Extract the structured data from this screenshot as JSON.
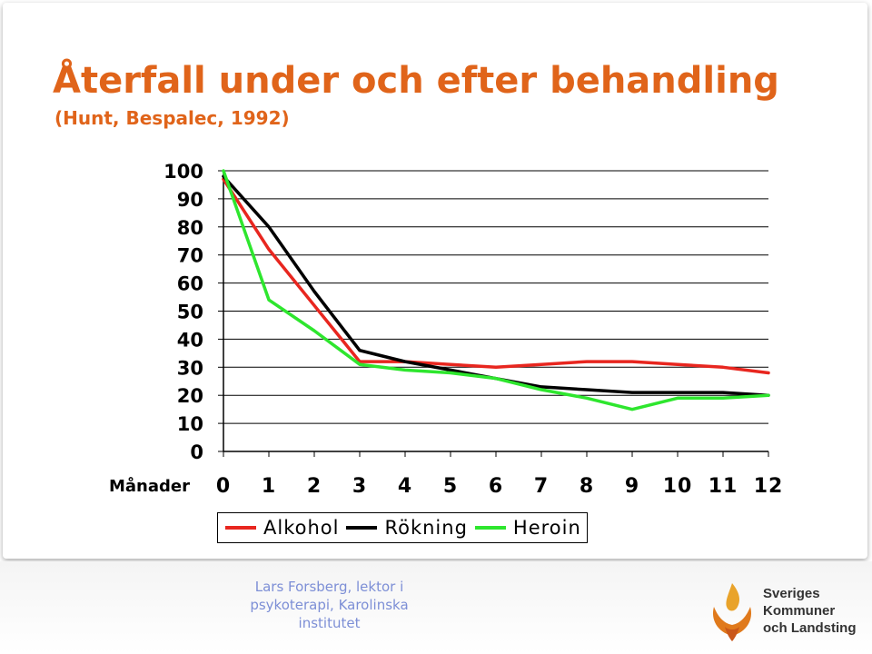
{
  "slide": {
    "title": "Återfall under och efter behandling",
    "subtitle": "(Hunt, Bespalec, 1992)",
    "credit": "Lars Forsberg, lektor i psykoterapi, Karolinska institutet",
    "logo": {
      "icon": "sklvpa-flame-logo-icon",
      "line1": "Sveriges",
      "line2": "Kommuner",
      "line3": "och Landsting"
    }
  },
  "chart_data": {
    "type": "line",
    "xlabel": "Månader",
    "ylabel": "",
    "x": [
      0,
      1,
      2,
      3,
      4,
      5,
      6,
      7,
      8,
      9,
      10,
      11,
      12
    ],
    "ylim": [
      0,
      100
    ],
    "yticks": [
      0,
      10,
      20,
      30,
      40,
      50,
      60,
      70,
      80,
      90,
      100
    ],
    "grid": true,
    "legend_position": "bottom",
    "series": [
      {
        "name": "Alkohol",
        "color": "#e8261f",
        "values": [
          97,
          72,
          52,
          32,
          32,
          31,
          30,
          31,
          32,
          32,
          31,
          30,
          28
        ]
      },
      {
        "name": "Rökning",
        "color": "#000000",
        "values": [
          98,
          80,
          57,
          36,
          32,
          29,
          26,
          23,
          22,
          21,
          21,
          21,
          20
        ]
      },
      {
        "name": "Heroin",
        "color": "#2ee62e",
        "values": [
          100,
          54,
          43,
          31,
          29,
          28,
          26,
          22,
          19,
          15,
          19,
          19,
          20
        ]
      }
    ]
  }
}
